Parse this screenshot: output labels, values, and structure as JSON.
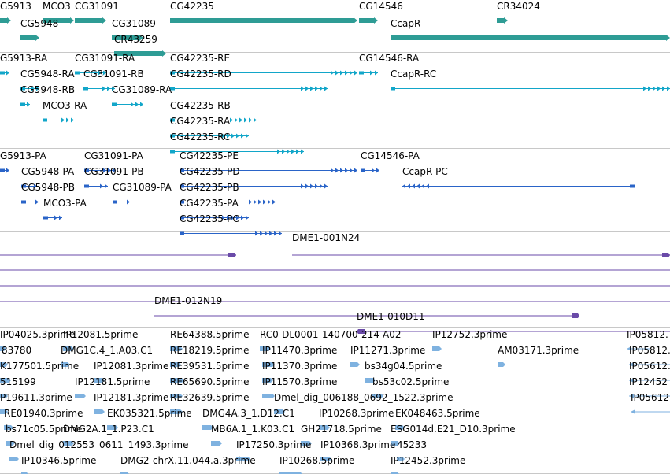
{
  "colors": {
    "gene": "#2e9c95",
    "transcript": "#12a6c9",
    "protein": "#2a64c8",
    "clone": "#6a4aa8",
    "est": "#7fb2e0",
    "separator": "#c8c8c8"
  },
  "tracks": [
    {
      "name": "gene-track",
      "features": [
        {
          "label": "G5913"
        },
        {
          "label": "MCO3"
        },
        {
          "label": "CG31091"
        },
        {
          "label": "CG42235"
        },
        {
          "label": "CG14546"
        },
        {
          "label": "CR34024"
        },
        {
          "label": "CG5948"
        },
        {
          "label": "CG31089"
        },
        {
          "label": "CcapR"
        },
        {
          "label": "CR43259"
        }
      ]
    },
    {
      "name": "transcript-track",
      "features": [
        {
          "label": "G5913-RA"
        },
        {
          "label": "CG31091-RA"
        },
        {
          "label": "CG42235-RE"
        },
        {
          "label": "CG14546-RA"
        },
        {
          "label": "CG5948-RA"
        },
        {
          "label": "CG31091-RB"
        },
        {
          "label": "CG42235-RD"
        },
        {
          "label": "CcapR-RC"
        },
        {
          "label": "CG5948-RB"
        },
        {
          "label": "CG31089-RA"
        },
        {
          "label": "MCO3-RA"
        },
        {
          "label": "CG42235-RB"
        },
        {
          "label": "CG42235-RA"
        },
        {
          "label": "CG42235-RC"
        }
      ]
    },
    {
      "name": "protein-track",
      "features": [
        {
          "label": "G5913-PA"
        },
        {
          "label": "CG31091-PA"
        },
        {
          "label": "CG42235-PE"
        },
        {
          "label": "CG14546-PA"
        },
        {
          "label": "CG5948-PA"
        },
        {
          "label": "CG31091-PB"
        },
        {
          "label": "CG42235-PD"
        },
        {
          "label": "CcapR-PC"
        },
        {
          "label": "CG5948-PB"
        },
        {
          "label": "CG31089-PA"
        },
        {
          "label": "CG42235-PB"
        },
        {
          "label": "MCO3-PA"
        },
        {
          "label": "CG42235-PA"
        },
        {
          "label": "CG42235-PC"
        }
      ]
    },
    {
      "name": "clone-track",
      "features": [
        {
          "label": ""
        },
        {
          "label": "DME1-001N24"
        },
        {
          "label": ""
        },
        {
          "label": ""
        },
        {
          "label": ""
        },
        {
          "label": "DME1-012N19"
        },
        {
          "label": "DME1-010D11"
        }
      ]
    },
    {
      "name": "est-track",
      "features": [
        {
          "label": "IP04025.3prime"
        },
        {
          "label": "IP12081.5prime"
        },
        {
          "label": "RE64388.5prime"
        },
        {
          "label": "RC0-DL0001-140700-214-A02"
        },
        {
          "label": "IP12752.3prime"
        },
        {
          "label": "IP05812."
        },
        {
          "label": "83780"
        },
        {
          "label": "DMG1C.4_1.A03.C1"
        },
        {
          "label": "RE18219.5prime"
        },
        {
          "label": "IP11470.3prime"
        },
        {
          "label": "IP11271.3prime"
        },
        {
          "label": "AM03171.3prime"
        },
        {
          "label": "IP05812."
        },
        {
          "label": "K177501.5prime"
        },
        {
          "label": "IP12081.3prime"
        },
        {
          "label": "RE39531.5prime"
        },
        {
          "label": "IP11370.3prime"
        },
        {
          "label": "bs34g04.5prime"
        },
        {
          "label": "IP05612."
        },
        {
          "label": "515199"
        },
        {
          "label": "IP12181.5prime"
        },
        {
          "label": "RE65690.5prime"
        },
        {
          "label": "IP11570.3prime"
        },
        {
          "label": "bs53c02.5prime"
        },
        {
          "label": "IP12452"
        },
        {
          "label": "P19611.3prime"
        },
        {
          "label": "IP12181.3prime"
        },
        {
          "label": "RE32639.5prime"
        },
        {
          "label": "Dmel_dig_006188_0692_1522.3prime"
        },
        {
          "label": "IP05612"
        },
        {
          "label": "RE01940.3prime"
        },
        {
          "label": "EK035321.5prime"
        },
        {
          "label": "DMG4A.3_1.D12.C1"
        },
        {
          "label": "IP10268.3prime"
        },
        {
          "label": "EK048463.5prime"
        },
        {
          "label": "bs71c05.5prime"
        },
        {
          "label": "DMG2A.1_1.P23.C1"
        },
        {
          "label": "MB6A.1_1.K03.C1"
        },
        {
          "label": "GH21718.5prime"
        },
        {
          "label": "ESG014d.E21_D10.3prime"
        },
        {
          "label": "Dmel_dig_012553_0611_1493.3prime"
        },
        {
          "label": "IP17250.3prime"
        },
        {
          "label": "IP10368.3prime"
        },
        {
          "label": "45233"
        },
        {
          "label": "IP10346.5prime"
        },
        {
          "label": "DMG2-chrX.11.044.a.3prime"
        },
        {
          "label": "IP10268.5prime"
        },
        {
          "label": "IP12452.3prime"
        }
      ]
    }
  ]
}
